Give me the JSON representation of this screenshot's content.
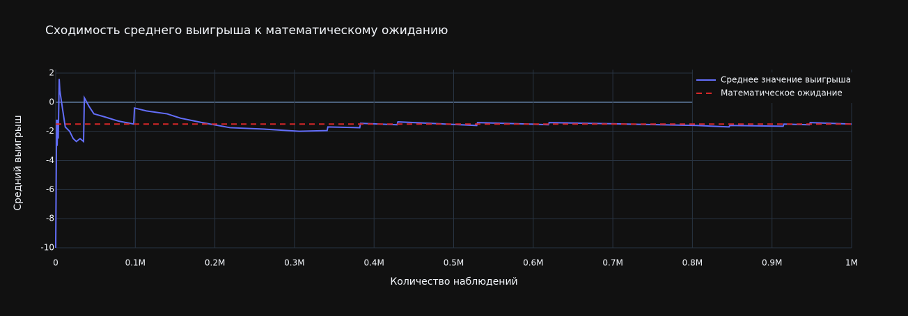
{
  "chart_data": {
    "type": "line",
    "title": "Сходимость среднего выигрыша к математическому ожиданию",
    "x_label": "Количество наблюдений",
    "y_label": "Средний выигрыш",
    "xlim": [
      0,
      1000000
    ],
    "ylim": [
      -10,
      2
    ],
    "xticks": [
      0,
      {
        "value": 100000,
        "label": "0.1M"
      },
      {
        "value": 200000,
        "label": "0.2M"
      },
      {
        "value": 300000,
        "label": "0.3M"
      },
      {
        "value": 400000,
        "label": "0.4M"
      },
      {
        "value": 500000,
        "label": "0.5M"
      },
      {
        "value": 600000,
        "label": "0.6M"
      },
      {
        "value": 700000,
        "label": "0.7M"
      },
      {
        "value": 800000,
        "label": "0.8M"
      },
      {
        "value": 900000,
        "label": "0.9M"
      },
      {
        "value": 1000000,
        "label": "1M"
      }
    ],
    "yticks": [
      2,
      0,
      -2,
      -4,
      -6,
      -8,
      -10
    ],
    "grid": true,
    "legend": "top-right",
    "series": [
      {
        "name": "Среднее значение выигрыша",
        "color": "#636efa",
        "dash": "solid",
        "x": [
          0,
          600,
          1200,
          1800,
          2500,
          3200,
          4400,
          5200,
          8700,
          12000,
          17500,
          22000,
          26000,
          30600,
          35000,
          36000,
          42000,
          48000,
          61000,
          79000,
          98000,
          99000,
          114000,
          140000,
          157000,
          184000,
          219000,
          262000,
          306000,
          341000,
          342000,
          382000,
          383000,
          429000,
          430000,
          490000,
          529000,
          530000,
          595000,
          619000,
          620000,
          717000,
          805000,
          846000,
          847000,
          914000,
          915000,
          947000,
          948000,
          1000000
        ],
        "values": [
          -10,
          -5.3,
          -1.2,
          -3,
          -1.2,
          -2.5,
          1.6,
          0.8,
          -0.5,
          -1.7,
          -2.0,
          -2.5,
          -2.7,
          -2.5,
          -2.7,
          0.3,
          -0.3,
          -0.8,
          -1.0,
          -1.3,
          -1.5,
          -0.4,
          -0.6,
          -0.8,
          -1.1,
          -1.4,
          -1.75,
          -1.85,
          -2.0,
          -1.95,
          -1.7,
          -1.75,
          -1.45,
          -1.55,
          -1.35,
          -1.5,
          -1.6,
          -1.4,
          -1.5,
          -1.55,
          -1.4,
          -1.5,
          -1.6,
          -1.7,
          -1.6,
          -1.65,
          -1.5,
          -1.55,
          -1.4,
          -1.5
        ]
      },
      {
        "name": "Математическое ожидание",
        "color": "#d62728",
        "dash": "dash",
        "x": [
          0,
          1000000
        ],
        "values": [
          -1.5,
          -1.5
        ]
      }
    ]
  }
}
